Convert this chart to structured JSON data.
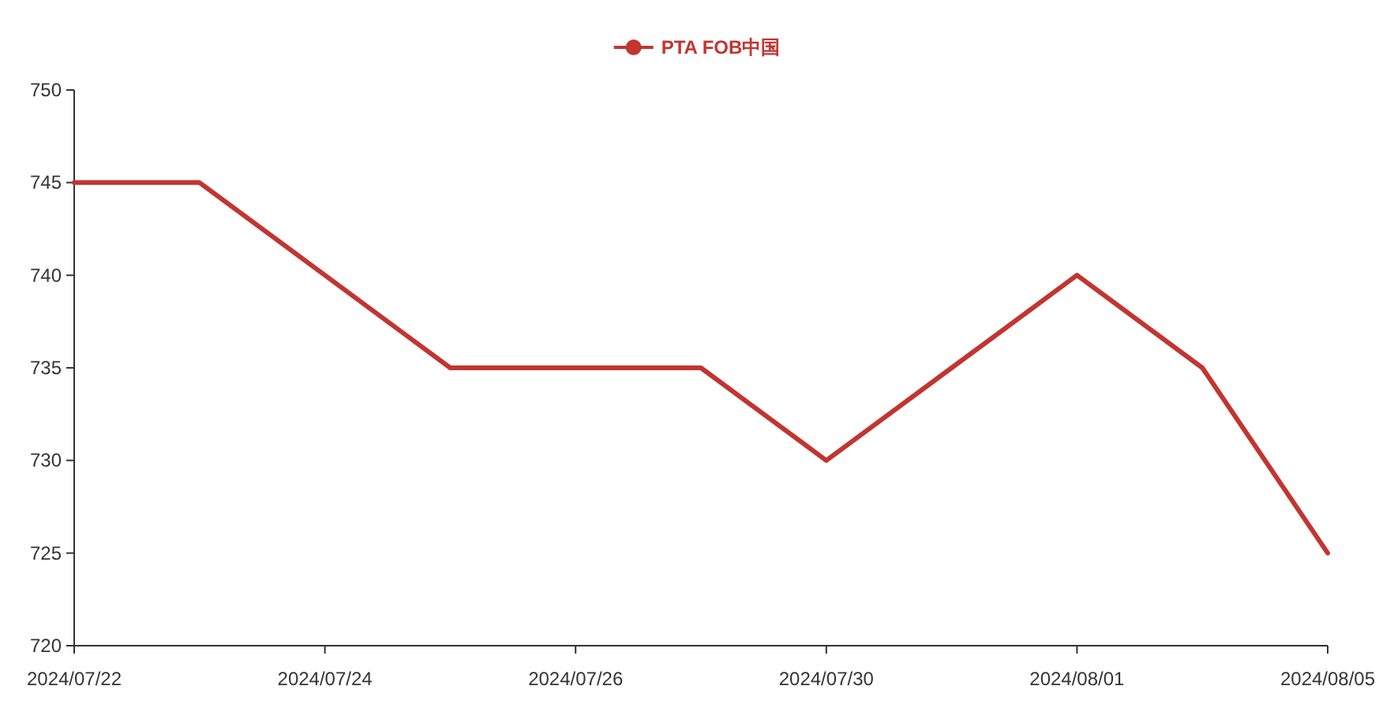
{
  "chart_data": {
    "type": "line",
    "categories": [
      "2024/07/22",
      null,
      "2024/07/24",
      null,
      "2024/07/26",
      null,
      "2024/07/30",
      null,
      "2024/08/01",
      null,
      "2024/08/05"
    ],
    "series": [
      {
        "name": "PTA FOB中国",
        "color": "#c23531",
        "values": [
          745,
          745,
          740,
          735,
          735,
          735,
          730,
          735,
          740,
          735,
          725
        ]
      }
    ],
    "ylim": [
      720,
      750
    ],
    "yticks": [
      720,
      725,
      730,
      735,
      740,
      745,
      750
    ],
    "legend": "top"
  }
}
